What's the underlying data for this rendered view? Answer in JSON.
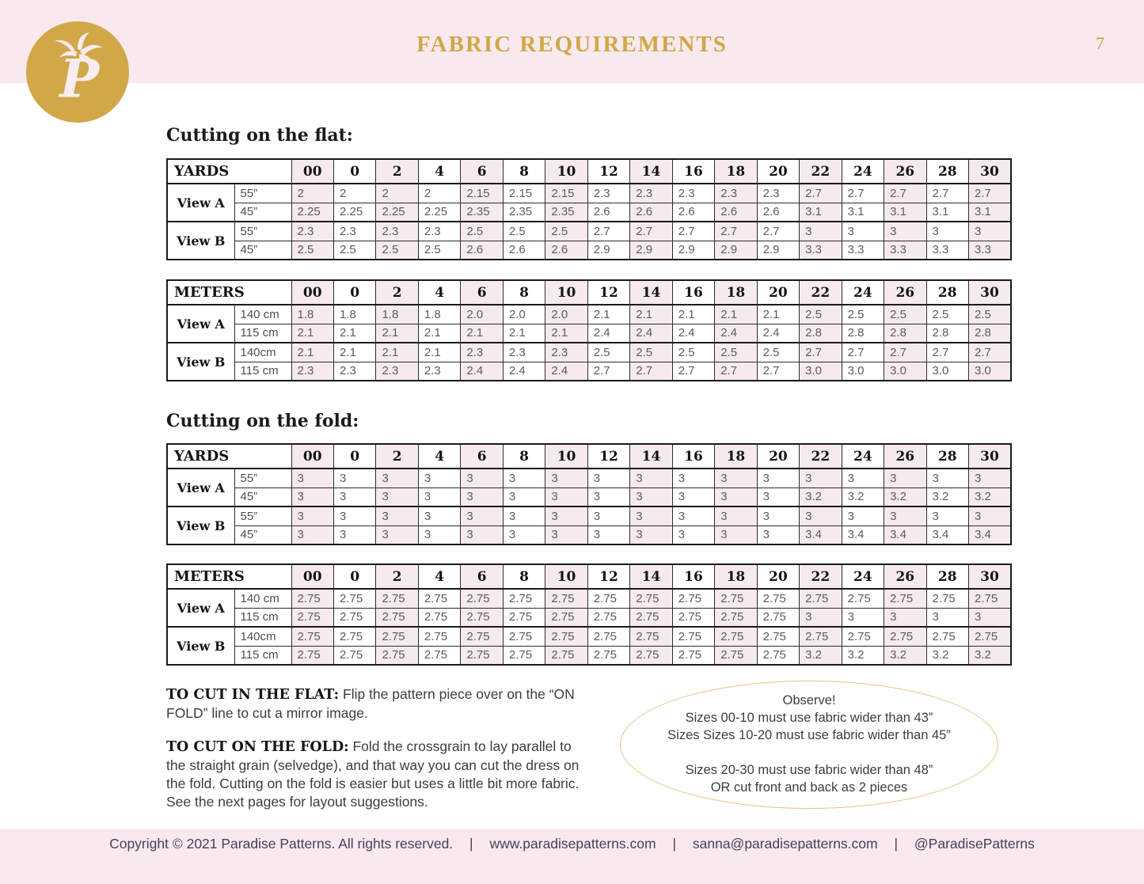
{
  "header": {
    "title": "FABRIC REQUIREMENTS",
    "page_number": "7",
    "logo_icon": "palm-tree-p-monogram"
  },
  "colors": {
    "accent_gold": "#d2a747",
    "strip_pink": "#f7e9ee",
    "cell_pink": "#f6eaee",
    "oval_border_gold": "#e6c27e"
  },
  "sizes": [
    "00",
    "0",
    "2",
    "4",
    "6",
    "8",
    "10",
    "12",
    "14",
    "16",
    "18",
    "20",
    "22",
    "24",
    "26",
    "28",
    "30"
  ],
  "sections": {
    "flat_heading": "Cutting on the flat:",
    "fold_heading": "Cutting on the fold:"
  },
  "tables": [
    {
      "id": "yards-flat",
      "unit_label": "YARDS",
      "rows": [
        {
          "view": "View A",
          "width": "55”",
          "values": [
            "2",
            "2",
            "2",
            "2",
            "2.15",
            "2.15",
            "2.15",
            "2.3",
            "2.3",
            "2.3",
            "2.3",
            "2.3",
            "2.7",
            "2.7",
            "2.7",
            "2.7",
            "2.7"
          ]
        },
        {
          "view": "",
          "width": "45”",
          "values": [
            "2.25",
            "2.25",
            "2.25",
            "2.25",
            "2.35",
            "2.35",
            "2.35",
            "2.6",
            "2.6",
            "2.6",
            "2.6",
            "2.6",
            "3.1",
            "3.1",
            "3.1",
            "3.1",
            "3.1"
          ]
        },
        {
          "view": "View B",
          "width": "55”",
          "values": [
            "2.3",
            "2.3",
            "2.3",
            "2.3",
            "2.5",
            "2.5",
            "2.5",
            "2.7",
            "2.7",
            "2.7",
            "2.7",
            "2.7",
            "3",
            "3",
            "3",
            "3",
            "3"
          ]
        },
        {
          "view": "",
          "width": "45”",
          "values": [
            "2.5",
            "2.5",
            "2.5",
            "2.5",
            "2.6",
            "2.6",
            "2.6",
            "2.9",
            "2.9",
            "2.9",
            "2.9",
            "2.9",
            "3.3",
            "3.3",
            "3.3",
            "3.3",
            "3.3"
          ]
        }
      ]
    },
    {
      "id": "meters-flat",
      "unit_label": "METERS",
      "rows": [
        {
          "view": "View A",
          "width": "140 cm",
          "values": [
            "1.8",
            "1.8",
            "1.8",
            "1.8",
            "2.0",
            "2.0",
            "2.0",
            "2.1",
            "2.1",
            "2.1",
            "2.1",
            "2.1",
            "2.5",
            "2.5",
            "2.5",
            "2.5",
            "2.5"
          ]
        },
        {
          "view": "",
          "width": "115 cm",
          "values": [
            "2.1",
            "2.1",
            "2.1",
            "2.1",
            "2.1",
            "2.1",
            "2.1",
            "2.4",
            "2.4",
            "2.4",
            "2.4",
            "2.4",
            "2.8",
            "2.8",
            "2.8",
            "2.8",
            "2.8"
          ]
        },
        {
          "view": "View B",
          "width": "140cm",
          "values": [
            "2.1",
            "2.1",
            "2.1",
            "2.1",
            "2.3",
            "2.3",
            "2.3",
            "2.5",
            "2.5",
            "2.5",
            "2.5",
            "2.5",
            "2.7",
            "2.7",
            "2.7",
            "2.7",
            "2.7"
          ]
        },
        {
          "view": "",
          "width": "115 cm",
          "values": [
            "2.3",
            "2.3",
            "2.3",
            "2.3",
            "2.4",
            "2.4",
            "2.4",
            "2.7",
            "2.7",
            "2.7",
            "2.7",
            "2.7",
            "3.0",
            "3.0",
            "3.0",
            "3.0",
            "3.0"
          ]
        }
      ]
    },
    {
      "id": "yards-fold",
      "unit_label": "YARDS",
      "rows": [
        {
          "view": "View A",
          "width": "55”",
          "values": [
            "3",
            "3",
            "3",
            "3",
            "3",
            "3",
            "3",
            "3",
            "3",
            "3",
            "3",
            "3",
            "3",
            "3",
            "3",
            "3",
            "3"
          ]
        },
        {
          "view": "",
          "width": "45”",
          "values": [
            "3",
            "3",
            "3",
            "3",
            "3",
            "3",
            "3",
            "3",
            "3",
            "3",
            "3",
            "3",
            "3.2",
            "3.2",
            "3.2",
            "3.2",
            "3.2"
          ]
        },
        {
          "view": "View B",
          "width": "55”",
          "values": [
            "3",
            "3",
            "3",
            "3",
            "3",
            "3",
            "3",
            "3",
            "3",
            "3",
            "3",
            "3",
            "3",
            "3",
            "3",
            "3",
            "3"
          ]
        },
        {
          "view": "",
          "width": "45”",
          "values": [
            "3",
            "3",
            "3",
            "3",
            "3",
            "3",
            "3",
            "3",
            "3",
            "3",
            "3",
            "3",
            "3.4",
            "3.4",
            "3.4",
            "3.4",
            "3.4"
          ]
        }
      ]
    },
    {
      "id": "meters-fold",
      "unit_label": "METERS",
      "rows": [
        {
          "view": "View A",
          "width": "140 cm",
          "values": [
            "2.75",
            "2.75",
            "2.75",
            "2.75",
            "2.75",
            "2.75",
            "2.75",
            "2.75",
            "2.75",
            "2.75",
            "2.75",
            "2.75",
            "2.75",
            "2.75",
            "2.75",
            "2.75",
            "2.75"
          ]
        },
        {
          "view": "",
          "width": "115 cm",
          "values": [
            "2.75",
            "2.75",
            "2.75",
            "2.75",
            "2.75",
            "2.75",
            "2.75",
            "2.75",
            "2.75",
            "2.75",
            "2.75",
            "2.75",
            "3",
            "3",
            "3",
            "3",
            "3"
          ]
        },
        {
          "view": "View B",
          "width": "140cm",
          "values": [
            "2.75",
            "2.75",
            "2.75",
            "2.75",
            "2.75",
            "2.75",
            "2.75",
            "2.75",
            "2.75",
            "2.75",
            "2.75",
            "2.75",
            "2.75",
            "2.75",
            "2.75",
            "2.75",
            "2.75"
          ]
        },
        {
          "view": "",
          "width": "115 cm",
          "values": [
            "2.75",
            "2.75",
            "2.75",
            "2.75",
            "2.75",
            "2.75",
            "2.75",
            "2.75",
            "2.75",
            "2.75",
            "2.75",
            "2.75",
            "3.2",
            "3.2",
            "3.2",
            "3.2",
            "3.2"
          ]
        }
      ]
    }
  ],
  "notes": {
    "flat": {
      "lead": "TO CUT IN THE FLAT:",
      "body": " Flip the pattern piece over on the “ON FOLD” line to cut a mirror image."
    },
    "fold": {
      "lead": "TO CUT ON THE FOLD:",
      "body": " Fold the crossgrain to lay parallel to the straight grain (selvedge), and that way you can cut the dress on the fold. Cutting on the fold is easier but uses a little bit more fabric. See the next pages for layout suggestions."
    }
  },
  "observe": {
    "lines": [
      "Observe!",
      "Sizes 00-10 must use fabric wider than 43”",
      "Sizes Sizes 10-20 must use fabric wider than 45”",
      "",
      "Sizes 20-30 must use fabric wider than 48”",
      "OR cut front and back as 2 pieces"
    ]
  },
  "footer": {
    "items": [
      "Copyright © 2021 Paradise Patterns. All rights reserved.",
      "www.paradisepatterns.com",
      "sanna@paradisepatterns.com",
      "@ParadisePatterns"
    ],
    "divider": "|"
  }
}
